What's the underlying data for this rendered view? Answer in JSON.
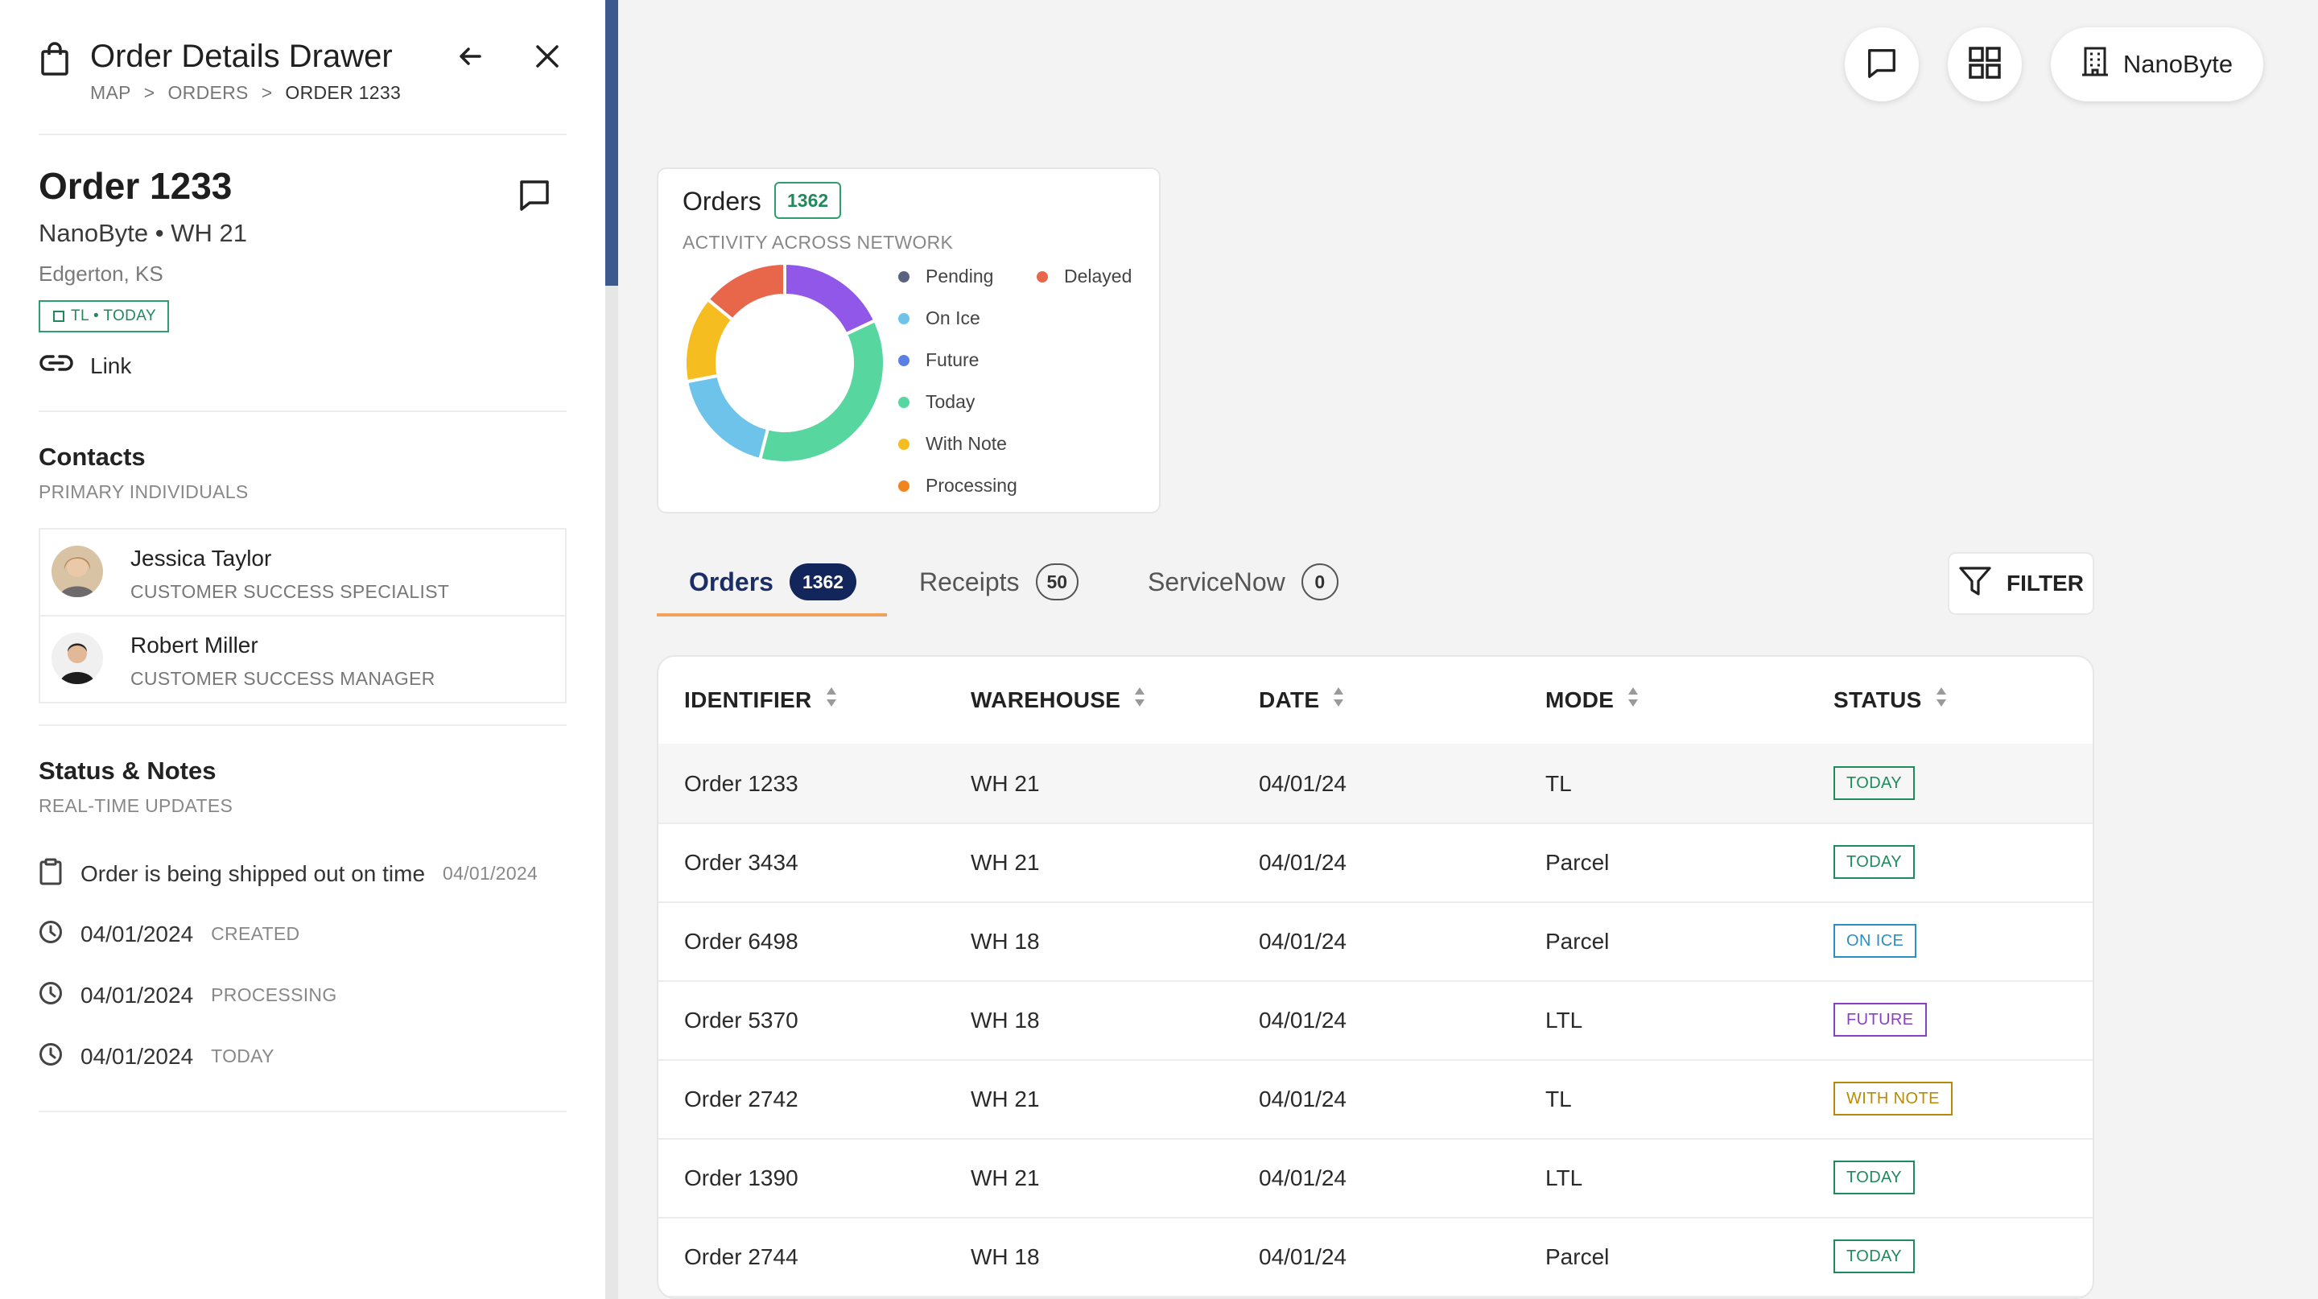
{
  "drawer": {
    "title": "Order Details Drawer",
    "breadcrumbs": [
      "MAP",
      "ORDERS",
      "ORDER 1233"
    ],
    "breadcrumb_separator": ">",
    "order": {
      "title": "Order 1233",
      "subtitle": "NanoByte • WH 21",
      "location": "Edgerton, KS",
      "badge": "TL • TODAY",
      "link_label": "Link"
    },
    "contacts": {
      "title": "Contacts",
      "subtitle": "PRIMARY INDIVIDUALS",
      "items": [
        {
          "name": "Jessica Taylor",
          "role": "CUSTOMER SUCCESS SPECIALIST"
        },
        {
          "name": "Robert Miller",
          "role": "CUSTOMER SUCCESS MANAGER"
        }
      ]
    },
    "status_notes": {
      "title": "Status & Notes",
      "subtitle": "REAL-TIME UPDATES",
      "items": [
        {
          "icon": "clipboard-icon",
          "text": "Order is being shipped out on time",
          "meta": "04/01/2024"
        },
        {
          "icon": "clock-icon",
          "text": "04/01/2024",
          "meta": "CREATED"
        },
        {
          "icon": "clock-icon",
          "text": "04/01/2024",
          "meta": "PROCESSING"
        },
        {
          "icon": "clock-icon",
          "text": "04/01/2024",
          "meta": "TODAY"
        }
      ]
    }
  },
  "topbar": {
    "org_name": "NanoByte"
  },
  "orders_card": {
    "title": "Orders",
    "count": "1362",
    "subtitle": "ACTIVITY ACROSS NETWORK",
    "legend": [
      {
        "label": "Pending",
        "color": "#5a6382"
      },
      {
        "label": "Delayed",
        "color": "#e8674a"
      },
      {
        "label": "On Ice",
        "color": "#6ec3ea"
      },
      {
        "label": "Future",
        "color": "#5b7fe6"
      },
      {
        "label": "Today",
        "color": "#58d6a0"
      },
      {
        "label": "With Note",
        "color": "#f6bd21"
      },
      {
        "label": "Processing",
        "color": "#f0841e"
      }
    ]
  },
  "chart_data": {
    "type": "pie",
    "categories": [
      "Future (purple)",
      "Today",
      "On Ice",
      "With Note",
      "Delayed"
    ],
    "values": [
      18,
      36,
      18,
      14,
      14
    ],
    "colors": [
      "#9157e8",
      "#58d6a0",
      "#6ec3ea",
      "#f6bd21",
      "#e8674a"
    ]
  },
  "tabs": [
    {
      "label": "Orders",
      "count": "1362",
      "active": true
    },
    {
      "label": "Receipts",
      "count": "50",
      "active": false
    },
    {
      "label": "ServiceNow",
      "count": "0",
      "active": false
    }
  ],
  "filter_label": "FILTER",
  "table": {
    "columns": [
      "IDENTIFIER",
      "WAREHOUSE",
      "DATE",
      "MODE",
      "STATUS"
    ],
    "rows": [
      {
        "id": "Order 1233",
        "warehouse": "WH 21",
        "date": "04/01/24",
        "mode": "TL",
        "status": "TODAY",
        "status_color": "#1f8a5b",
        "selected": true
      },
      {
        "id": "Order 3434",
        "warehouse": "WH 21",
        "date": "04/01/24",
        "mode": "Parcel",
        "status": "TODAY",
        "status_color": "#1f8a5b"
      },
      {
        "id": "Order 6498",
        "warehouse": "WH 18",
        "date": "04/01/24",
        "mode": "Parcel",
        "status": "ON ICE",
        "status_color": "#2b8fc4"
      },
      {
        "id": "Order 5370",
        "warehouse": "WH 18",
        "date": "04/01/24",
        "mode": "LTL",
        "status": "FUTURE",
        "status_color": "#8a3fc7"
      },
      {
        "id": "Order 2742",
        "warehouse": "WH 21",
        "date": "04/01/24",
        "mode": "TL",
        "status": "WITH NOTE",
        "status_color": "#b98a06"
      },
      {
        "id": "Order 1390",
        "warehouse": "WH 21",
        "date": "04/01/24",
        "mode": "LTL",
        "status": "TODAY",
        "status_color": "#1f8a5b"
      },
      {
        "id": "Order 2744",
        "warehouse": "WH 18",
        "date": "04/01/24",
        "mode": "Parcel",
        "status": "TODAY",
        "status_color": "#1f8a5b"
      }
    ]
  }
}
